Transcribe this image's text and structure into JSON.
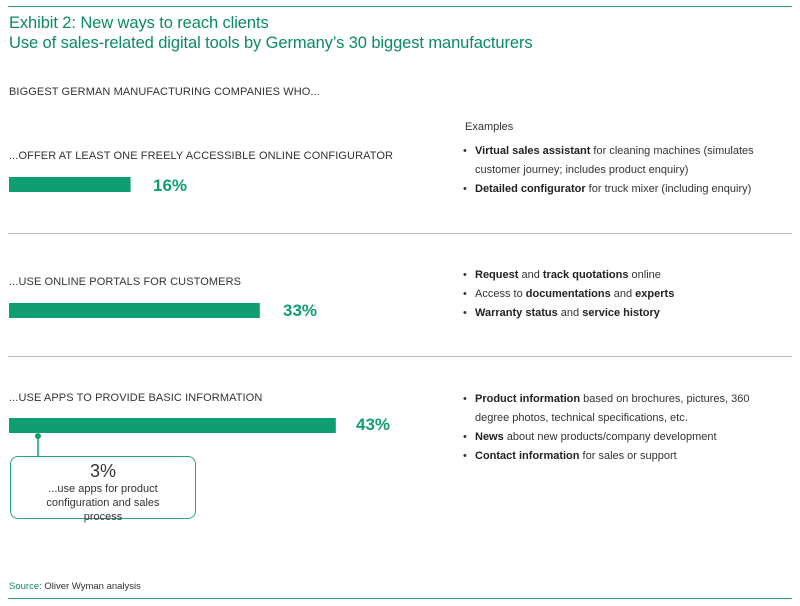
{
  "title": "Exhibit 2: New ways to reach clients",
  "subtitle": "Use of sales-related digital tools by Germany’s 30 biggest manufacturers",
  "section_heading": "BIGGEST GERMAN MANUFACTURING COMPANIES WHO...",
  "examples_heading": "Examples",
  "colors": {
    "accent": "#0e9e72",
    "bar": "#0e9e72",
    "title": "#0a8a66",
    "rule": "#b8b8b8"
  },
  "chart_data": {
    "type": "bar",
    "orientation": "horizontal",
    "categories": [
      "...OFFER AT LEAST ONE FREELY ACCESSIBLE ONLINE CONFIGURATOR",
      "...USE ONLINE PORTALS FOR CUSTOMERS",
      "...USE APPS TO PROVIDE BASIC INFORMATION"
    ],
    "values": [
      16,
      33,
      43
    ],
    "value_labels": [
      "16%",
      "33%",
      "43%"
    ],
    "unit": "%",
    "xlim": [
      0,
      100
    ],
    "grid": false,
    "annotation": {
      "value": 3,
      "label": "3%",
      "text": "...use apps for product configuration and sales process"
    }
  },
  "rows": [
    {
      "label": "...OFFER AT LEAST ONE FREELY ACCESSIBLE ONLINE CONFIGURATOR",
      "value_label": "16%",
      "examples": [
        {
          "bold": "Virtual sales assistant",
          "text": " for cleaning machines (simulates customer journey; includes product enquiry)"
        },
        {
          "bold": "Detailed configurator",
          "text": " for truck mixer (including enquiry)"
        }
      ]
    },
    {
      "label": "...USE ONLINE PORTALS FOR CUSTOMERS",
      "value_label": "33%",
      "examples": [
        {
          "parts": [
            {
              "b": "Request"
            },
            {
              "t": " and "
            },
            {
              "b": "track quotations"
            },
            {
              "t": " online"
            }
          ]
        },
        {
          "parts": [
            {
              "t": "Access to "
            },
            {
              "b": "documentations"
            },
            {
              "t": " and "
            },
            {
              "b": "experts"
            }
          ]
        },
        {
          "parts": [
            {
              "b": "Warranty status"
            },
            {
              "t": " and "
            },
            {
              "b": "service history"
            }
          ]
        }
      ]
    },
    {
      "label": "...USE APPS TO PROVIDE BASIC INFORMATION",
      "value_label": "43%",
      "examples": [
        {
          "bold": "Product information",
          "text": " based on brochures, pictures, 360 degree photos, technical specifications, etc."
        },
        {
          "bold": "News",
          "text": " about new products/company development"
        },
        {
          "bold": "Contact information",
          "text": " for sales or support"
        }
      ]
    }
  ],
  "callout": {
    "value_label": "3%",
    "text": "...use apps for product configuration and sales process"
  },
  "source": {
    "label": "Source:",
    "text": " Oliver Wyman analysis"
  }
}
